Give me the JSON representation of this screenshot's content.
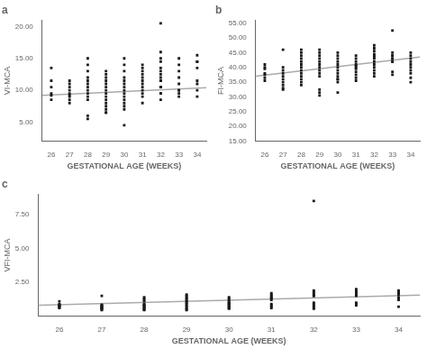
{
  "chart_data": [
    {
      "type": "scatter",
      "title": "a",
      "x_label": "GESTATIONAL AGE (WEEKS)",
      "y_label": "VI-MCA",
      "xlim": [
        25.5,
        34.5
      ],
      "xticks": [
        26,
        27,
        28,
        29,
        30,
        31,
        32,
        33,
        34
      ],
      "ylim": [
        2.0,
        21.0
      ],
      "yticks": [
        {
          "value": 5.0,
          "label": "5.00"
        },
        {
          "value": 10.0,
          "label": "10.00"
        },
        {
          "value": 15.0,
          "label": "15.00"
        },
        {
          "value": 20.0,
          "label": "20.00"
        }
      ],
      "grid": false,
      "series": [
        {
          "type": "scatter",
          "color": "#1a1a1a",
          "marker": "square",
          "x": [
            26,
            26,
            26,
            26,
            26,
            26,
            27,
            27,
            27,
            27,
            27,
            27,
            27,
            27,
            27,
            28,
            28,
            28,
            28,
            28,
            28,
            28,
            28,
            28,
            28,
            28,
            28,
            28,
            29,
            29,
            29,
            29,
            29,
            29,
            29,
            29,
            29,
            29,
            29,
            29,
            29,
            29,
            29,
            30,
            30,
            30,
            30,
            30,
            30,
            30,
            30,
            30,
            30,
            30,
            30,
            30,
            30,
            30,
            31,
            31,
            31,
            31,
            31,
            31,
            31,
            31,
            31,
            31,
            31,
            31,
            32,
            32,
            32,
            32,
            32,
            32,
            32,
            32,
            32,
            32,
            32,
            32,
            32,
            32,
            32,
            32,
            33,
            33,
            33,
            33,
            33,
            33,
            33,
            33,
            33,
            34,
            34,
            34,
            34,
            34,
            34,
            34,
            34
          ],
          "values": [
            9.5,
            9.2,
            8.5,
            10.5,
            11.5,
            13.5,
            8.5,
            9.5,
            10.0,
            10.5,
            11.0,
            11.5,
            9.0,
            8.0,
            9.2,
            8.5,
            9.0,
            9.5,
            10.0,
            10.5,
            11.0,
            11.5,
            12.0,
            13.0,
            14.0,
            15.0,
            5.5,
            6.0,
            6.5,
            7.0,
            7.5,
            8.0,
            8.5,
            9.0,
            9.5,
            10.0,
            10.5,
            11.0,
            11.5,
            12.0,
            12.5,
            13.0,
            6.5,
            4.5,
            7.0,
            7.5,
            8.0,
            8.5,
            9.0,
            9.5,
            10.0,
            10.5,
            11.0,
            11.5,
            12.0,
            13.0,
            14.0,
            15.0,
            9.5,
            10.0,
            10.5,
            11.0,
            11.5,
            12.0,
            12.5,
            13.0,
            13.5,
            14.0,
            9.0,
            8.0,
            9.5,
            10.5,
            11.5,
            12.0,
            12.5,
            13.0,
            13.5,
            14.5,
            15.0,
            16.0,
            9.5,
            10.5,
            11.5,
            8.5,
            20.5,
            10.5,
            10.0,
            11.0,
            12.0,
            13.0,
            14.0,
            15.0,
            9.5,
            9.0,
            10.0,
            11.5,
            14.5,
            13.5,
            15.5,
            14.5,
            9.0,
            10.0,
            11.0
          ]
        },
        {
          "type": "line",
          "color": "#aaaaaa",
          "line_style": "solid",
          "x": [
            25.5,
            34.5
          ],
          "values": [
            9.2,
            10.4
          ]
        }
      ]
    },
    {
      "type": "scatter",
      "title": "b",
      "x_label": "GESTATIONAL AGE (WEEKS)",
      "y_label": "FI-MCA",
      "xlim": [
        25.5,
        34.5
      ],
      "xticks": [
        26,
        27,
        28,
        29,
        30,
        31,
        32,
        33,
        34
      ],
      "ylim": [
        15.0,
        56.0
      ],
      "yticks": [
        {
          "value": 15.0,
          "label": "15.00"
        },
        {
          "value": 20.0,
          "label": "20.00"
        },
        {
          "value": 25.0,
          "label": "25.00"
        },
        {
          "value": 30.0,
          "label": "30.00"
        },
        {
          "value": 35.0,
          "label": "35.00"
        },
        {
          "value": 40.0,
          "label": "40.00"
        },
        {
          "value": 45.0,
          "label": "45.00"
        },
        {
          "value": 50.0,
          "label": "50.00"
        },
        {
          "value": 55.0,
          "label": "55.00"
        }
      ],
      "grid": false,
      "series": [
        {
          "type": "scatter",
          "color": "#1a1a1a",
          "marker": "square",
          "x": [
            26,
            26,
            26,
            26,
            26,
            26,
            26,
            27,
            27,
            27,
            27,
            27,
            27,
            27,
            27,
            27,
            27,
            28,
            28,
            28,
            28,
            28,
            28,
            28,
            28,
            28,
            28,
            28,
            28,
            28,
            29,
            29,
            29,
            29,
            29,
            29,
            29,
            29,
            29,
            29,
            29,
            29,
            29,
            30,
            30,
            30,
            30,
            30,
            30,
            30,
            30,
            30,
            30,
            30,
            30,
            30,
            31,
            31,
            31,
            31,
            31,
            31,
            31,
            31,
            31,
            31,
            31,
            32,
            32,
            32,
            32,
            32,
            32,
            32,
            32,
            32,
            32,
            32,
            32,
            32,
            33,
            33,
            33,
            33,
            33,
            33,
            33,
            33,
            33,
            33,
            34,
            34,
            34,
            34,
            34,
            34,
            34,
            34,
            34,
            34
          ],
          "values": [
            39.5,
            40.0,
            38.0,
            37.5,
            36.5,
            35.5,
            41.0,
            39.0,
            40.0,
            38.0,
            37.0,
            36.0,
            35.0,
            34.0,
            32.5,
            33.0,
            46.0,
            38.0,
            39.0,
            40.0,
            41.0,
            42.0,
            43.0,
            44.0,
            45.0,
            46.0,
            37.0,
            36.0,
            35.0,
            34.0,
            32.5,
            31.5,
            30.5,
            44.0,
            45.0,
            46.0,
            41.0,
            42.0,
            43.0,
            38.0,
            39.0,
            40.0,
            37.0,
            36.0,
            35.0,
            39.0,
            40.0,
            41.0,
            42.0,
            43.0,
            44.0,
            45.0,
            38.0,
            37.0,
            36.0,
            31.5,
            40.0,
            41.0,
            42.0,
            43.0,
            44.0,
            39.5,
            38.5,
            37.5,
            36.5,
            35.5,
            40.5,
            43.5,
            44.5,
            45.5,
            46.5,
            47.5,
            42.0,
            43.0,
            44.0,
            41.0,
            40.0,
            39.0,
            38.0,
            37.0,
            52.5,
            42.0,
            43.0,
            44.0,
            45.0,
            37.5,
            38.5,
            42.0,
            43.0,
            44.0,
            45.0,
            42.0,
            43.0,
            44.0,
            41.0,
            40.0,
            39.0,
            38.0,
            36.5,
            35.0
          ]
        },
        {
          "type": "line",
          "color": "#aaaaaa",
          "line_style": "solid",
          "x": [
            25.5,
            34.5
          ],
          "values": [
            37.0,
            43.5
          ]
        }
      ]
    },
    {
      "type": "scatter",
      "title": "c",
      "x_label": "GESTATIONAL AGE (WEEKS)",
      "y_label": "VFI-MCA",
      "xlim": [
        25.5,
        34.5
      ],
      "xticks": [
        26,
        27,
        28,
        29,
        30,
        31,
        32,
        33,
        34
      ],
      "ylim": [
        0.0,
        9.0
      ],
      "yticks": [
        {
          "value": 2.5,
          "label": "2.50"
        },
        {
          "value": 5.0,
          "label": "5.00"
        },
        {
          "value": 7.5,
          "label": "7.50"
        }
      ],
      "grid": false,
      "series": [
        {
          "type": "scatter",
          "color": "#1a1a1a",
          "marker": "square",
          "x": [
            26,
            26,
            26,
            26,
            26,
            26,
            26,
            26,
            27,
            27,
            27,
            27,
            27,
            27,
            27,
            27,
            27,
            27,
            28,
            28,
            28,
            28,
            28,
            28,
            28,
            28,
            28,
            28,
            28,
            28,
            28,
            29,
            29,
            29,
            29,
            29,
            29,
            29,
            29,
            29,
            29,
            29,
            29,
            29,
            30,
            30,
            30,
            30,
            30,
            30,
            30,
            30,
            30,
            30,
            30,
            30,
            30,
            31,
            31,
            31,
            31,
            31,
            31,
            31,
            31,
            31,
            31,
            31,
            32,
            32,
            32,
            32,
            32,
            32,
            32,
            32,
            32,
            32,
            32,
            32,
            32,
            33,
            33,
            33,
            33,
            33,
            33,
            33,
            33,
            33,
            34,
            34,
            34,
            34,
            34,
            34,
            34,
            34
          ],
          "values": [
            0.9,
            0.85,
            0.8,
            0.75,
            0.7,
            0.65,
            0.6,
            1.1,
            0.85,
            0.8,
            0.75,
            0.7,
            0.65,
            0.6,
            0.55,
            0.5,
            0.45,
            1.5,
            0.9,
            0.85,
            0.8,
            0.75,
            0.7,
            1.1,
            1.2,
            1.3,
            1.4,
            0.6,
            0.55,
            0.5,
            0.45,
            0.9,
            1.0,
            1.1,
            1.2,
            0.8,
            0.7,
            0.6,
            0.5,
            0.45,
            1.3,
            1.4,
            1.5,
            1.6,
            1.0,
            0.95,
            0.9,
            0.85,
            0.8,
            1.2,
            1.3,
            1.4,
            0.7,
            0.65,
            0.6,
            0.55,
            1.1,
            1.2,
            1.3,
            1.35,
            1.4,
            1.5,
            0.9,
            0.8,
            0.7,
            0.6,
            1.6,
            1.7,
            1.5,
            1.6,
            1.7,
            1.8,
            1.9,
            8.5,
            1.0,
            0.9,
            0.8,
            0.7,
            0.6,
            0.55,
            1.5,
            1.6,
            1.7,
            1.8,
            1.9,
            2.0,
            1.0,
            0.9,
            0.8,
            1.5,
            1.6,
            1.7,
            1.4,
            1.3,
            1.2,
            0.7,
            1.8,
            1.9
          ]
        },
        {
          "type": "line",
          "color": "#aaaaaa",
          "line_style": "solid",
          "x": [
            25.5,
            34.5
          ],
          "values": [
            0.8,
            1.55
          ]
        }
      ]
    }
  ]
}
